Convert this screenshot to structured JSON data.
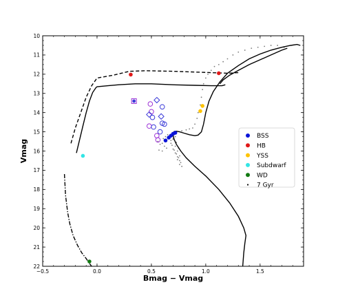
{
  "chart_data": {
    "type": "scatter",
    "title": "",
    "xlabel": "Bmag − Vmag",
    "ylabel": "Vmag",
    "xlim": [
      -0.5,
      1.9
    ],
    "ylim": [
      22,
      10
    ],
    "y_inverted": true,
    "x_ticks": [
      -0.5,
      0.0,
      0.5,
      1.0,
      1.5
    ],
    "x_tick_labels": [
      "−0.5",
      "0.0",
      "0.5",
      "1.0",
      "1.5"
    ],
    "y_ticks": [
      10,
      11,
      12,
      13,
      14,
      15,
      16,
      17,
      18,
      19,
      20,
      21,
      22
    ],
    "y_tick_labels": [
      "10",
      "11",
      "12",
      "13",
      "14",
      "15",
      "16",
      "17",
      "18",
      "19",
      "20",
      "21",
      "22"
    ],
    "grid": false,
    "legend_position": "center-right",
    "colors": {
      "bss": "#0a14d8",
      "hb": "#e01818",
      "yss": "#ffc400",
      "subdwarf": "#33e5e5",
      "wd": "#127a12",
      "open_marker": "#3a3ad8",
      "purple_marker": "#9b2fd6",
      "isochrone_points": "#7a7a7a",
      "track": "#000000"
    },
    "series": [
      {
        "name": "BSS",
        "marker": "filled-circle",
        "x": [
          0.63,
          0.66,
          0.68,
          0.7,
          0.72
        ],
        "y": [
          15.45,
          15.3,
          15.2,
          15.1,
          15.05
        ]
      },
      {
        "name": "HB",
        "marker": "filled-circle",
        "x": [
          0.31,
          1.12
        ],
        "y": [
          12.02,
          11.95
        ]
      },
      {
        "name": "YSS",
        "marker": "filled-circle",
        "x": [
          0.95,
          0.97
        ],
        "y": [
          13.92,
          13.65
        ]
      },
      {
        "name": "Subdwarf",
        "marker": "filled-circle",
        "x": [
          -0.13
        ],
        "y": [
          16.25
        ]
      },
      {
        "name": "WD",
        "marker": "filled-circle",
        "x": [
          -0.07
        ],
        "y": [
          21.75
        ]
      },
      {
        "name": "7 Gyr",
        "marker": "dot",
        "x": [
          0.66,
          0.68,
          0.7,
          0.72,
          0.74,
          0.76,
          0.69,
          0.71,
          0.73,
          0.75,
          0.77,
          0.7,
          0.72,
          0.74,
          0.76,
          0.73,
          0.75,
          0.74,
          0.76,
          0.78,
          0.65,
          0.67,
          0.63,
          0.61,
          0.64,
          0.6,
          0.78,
          0.82,
          0.85,
          0.88,
          0.9,
          0.92,
          0.93,
          0.95,
          0.96,
          0.97,
          0.98,
          1.0,
          1.02,
          1.05,
          1.08,
          1.12,
          1.16,
          1.2,
          1.25,
          1.3,
          1.36,
          1.42,
          1.48,
          1.54,
          1.6,
          1.66,
          1.72,
          0.56,
          0.58,
          0.62,
          0.64,
          0.68,
          0.7,
          0.72,
          0.57,
          0.6
        ],
        "y": [
          15.3,
          15.6,
          15.9,
          16.1,
          16.3,
          16.5,
          15.7,
          15.95,
          16.15,
          16.35,
          16.6,
          15.4,
          15.75,
          16.0,
          16.25,
          15.55,
          15.85,
          16.45,
          16.7,
          16.8,
          15.15,
          15.2,
          15.25,
          15.35,
          15.5,
          15.6,
          14.95,
          14.9,
          14.85,
          14.8,
          14.6,
          14.3,
          14.0,
          13.6,
          13.2,
          12.8,
          12.5,
          12.2,
          12.0,
          11.8,
          11.6,
          11.5,
          11.35,
          11.2,
          11.0,
          10.85,
          10.75,
          10.65,
          10.6,
          10.55,
          10.5,
          10.5,
          10.6,
          15.5,
          15.65,
          15.75,
          15.85,
          15.45,
          15.35,
          15.25,
          15.95,
          16.0
        ]
      }
    ],
    "open_markers": [
      {
        "shape": "square",
        "color": "purple",
        "x": 0.34,
        "y": 13.4
      },
      {
        "shape": "filled-circle",
        "color": "blue",
        "x": 0.34,
        "y": 13.4
      },
      {
        "shape": "diamond",
        "color": "blue",
        "x": 0.55,
        "y": 13.35
      },
      {
        "shape": "circle",
        "color": "blue",
        "x": 0.6,
        "y": 13.7
      },
      {
        "shape": "circle",
        "color": "purple",
        "x": 0.49,
        "y": 13.55
      },
      {
        "shape": "circle",
        "color": "purple",
        "x": 0.5,
        "y": 13.95
      },
      {
        "shape": "diamond",
        "color": "blue",
        "x": 0.48,
        "y": 14.1
      },
      {
        "shape": "circle",
        "color": "blue",
        "x": 0.51,
        "y": 14.25
      },
      {
        "shape": "diamond",
        "color": "blue",
        "x": 0.59,
        "y": 14.2
      },
      {
        "shape": "circle",
        "color": "blue",
        "x": 0.6,
        "y": 14.55
      },
      {
        "shape": "circle",
        "color": "blue",
        "x": 0.62,
        "y": 14.6
      },
      {
        "shape": "circle",
        "color": "purple",
        "x": 0.48,
        "y": 14.7
      },
      {
        "shape": "circle",
        "color": "blue",
        "x": 0.52,
        "y": 14.75
      },
      {
        "shape": "circle",
        "color": "blue",
        "x": 0.58,
        "y": 15.0
      },
      {
        "shape": "circle",
        "color": "purple",
        "x": 0.55,
        "y": 15.2
      },
      {
        "shape": "circle",
        "color": "purple",
        "x": 0.56,
        "y": 15.42
      }
    ],
    "curves": [
      {
        "style": "solid",
        "x": [
          -0.19,
          -0.16,
          -0.13,
          -0.1,
          -0.07,
          -0.04,
          -0.01,
          0.0,
          0.1,
          0.2,
          0.35,
          0.5,
          0.7,
          0.9,
          1.05,
          1.15,
          1.18
        ],
        "y": [
          16.1,
          15.4,
          14.7,
          14.0,
          13.4,
          12.95,
          12.7,
          12.65,
          12.6,
          12.55,
          12.5,
          12.5,
          12.55,
          12.58,
          12.6,
          12.6,
          12.55
        ]
      },
      {
        "style": "dashed",
        "x": [
          -0.24,
          -0.2,
          -0.15,
          -0.1,
          -0.05,
          0.0,
          0.15,
          0.3,
          0.45,
          0.7,
          0.95,
          1.2,
          1.3
        ],
        "y": [
          15.6,
          14.8,
          14.0,
          13.2,
          12.6,
          12.2,
          12.05,
          11.85,
          11.82,
          11.85,
          11.9,
          11.95,
          11.92
        ]
      },
      {
        "style": "dash-dot",
        "x": [
          -0.3,
          -0.29,
          -0.27,
          -0.25,
          -0.22,
          -0.18,
          -0.14,
          -0.1,
          -0.07,
          -0.05
        ],
        "y": [
          17.2,
          18.3,
          19.2,
          19.8,
          20.4,
          20.9,
          21.3,
          21.6,
          21.85,
          22.0
        ]
      },
      {
        "style": "solid",
        "x": [
          1.34,
          1.35,
          1.36,
          1.37,
          1.35,
          1.3,
          1.22,
          1.12,
          1.0,
          0.9,
          0.82,
          0.77,
          0.73,
          0.71,
          0.7,
          0.7,
          0.71,
          0.73,
          0.76,
          0.8,
          0.85,
          0.9,
          0.93,
          0.96,
          0.98,
          1.0,
          1.03,
          1.07,
          1.13,
          1.2,
          1.3,
          1.4,
          1.5,
          1.6,
          1.7,
          1.78,
          1.84,
          1.87
        ],
        "y": [
          22.0,
          21.3,
          20.8,
          20.4,
          20.0,
          19.4,
          18.7,
          18.0,
          17.3,
          16.8,
          16.35,
          16.0,
          15.65,
          15.4,
          15.2,
          15.05,
          14.98,
          14.97,
          15.0,
          15.07,
          15.15,
          15.2,
          15.17,
          15.0,
          14.6,
          14.0,
          13.4,
          12.9,
          12.4,
          11.95,
          11.55,
          11.2,
          10.95,
          10.75,
          10.6,
          10.5,
          10.45,
          10.5
        ]
      },
      {
        "style": "solid",
        "x": [
          1.13,
          1.16,
          1.22,
          1.3,
          1.4,
          1.5,
          1.6,
          1.7,
          1.75
        ],
        "y": [
          12.5,
          12.3,
          12.05,
          11.8,
          11.5,
          11.25,
          11.0,
          10.75,
          10.65
        ]
      }
    ]
  }
}
